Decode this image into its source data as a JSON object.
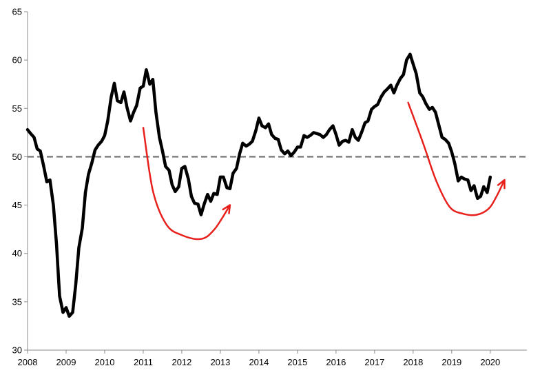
{
  "chart_data": {
    "type": "line",
    "title": "",
    "xlabel": "",
    "ylabel": "",
    "xlim": [
      2008.0,
      2020.95
    ],
    "ylim": [
      30,
      65
    ],
    "x_ticks": [
      2008,
      2009,
      2010,
      2011,
      2012,
      2013,
      2014,
      2015,
      2016,
      2017,
      2018,
      2019,
      2020
    ],
    "y_ticks": [
      30,
      35,
      40,
      45,
      50,
      55,
      60,
      65
    ],
    "grid": false,
    "legend": "none",
    "reference_line": {
      "value": 50,
      "style": "dashed",
      "color": "#808080"
    },
    "series": [
      {
        "color": "#000000",
        "points": [
          [
            2008.0,
            52.8
          ],
          [
            2008.08,
            52.4
          ],
          [
            2008.17,
            52.0
          ],
          [
            2008.25,
            50.8
          ],
          [
            2008.33,
            50.6
          ],
          [
            2008.42,
            49.0
          ],
          [
            2008.5,
            47.4
          ],
          [
            2008.58,
            47.6
          ],
          [
            2008.67,
            45.0
          ],
          [
            2008.75,
            41.0
          ],
          [
            2008.83,
            35.6
          ],
          [
            2008.92,
            33.9
          ],
          [
            2009.0,
            34.4
          ],
          [
            2009.08,
            33.5
          ],
          [
            2009.17,
            33.9
          ],
          [
            2009.25,
            36.8
          ],
          [
            2009.33,
            40.6
          ],
          [
            2009.42,
            42.6
          ],
          [
            2009.5,
            46.3
          ],
          [
            2009.58,
            48.2
          ],
          [
            2009.67,
            49.4
          ],
          [
            2009.75,
            50.7
          ],
          [
            2009.83,
            51.2
          ],
          [
            2009.92,
            51.6
          ],
          [
            2010.0,
            52.2
          ],
          [
            2010.08,
            53.7
          ],
          [
            2010.17,
            56.2
          ],
          [
            2010.25,
            57.6
          ],
          [
            2010.33,
            55.8
          ],
          [
            2010.42,
            55.6
          ],
          [
            2010.5,
            56.7
          ],
          [
            2010.58,
            55.1
          ],
          [
            2010.67,
            53.7
          ],
          [
            2010.75,
            54.6
          ],
          [
            2010.83,
            55.3
          ],
          [
            2010.92,
            57.1
          ],
          [
            2011.0,
            57.3
          ],
          [
            2011.08,
            59.0
          ],
          [
            2011.17,
            57.5
          ],
          [
            2011.25,
            58.0
          ],
          [
            2011.33,
            54.6
          ],
          [
            2011.42,
            52.0
          ],
          [
            2011.5,
            50.6
          ],
          [
            2011.58,
            49.0
          ],
          [
            2011.67,
            48.6
          ],
          [
            2011.75,
            47.1
          ],
          [
            2011.83,
            46.4
          ],
          [
            2011.92,
            46.9
          ],
          [
            2012.0,
            48.8
          ],
          [
            2012.08,
            49.0
          ],
          [
            2012.17,
            47.7
          ],
          [
            2012.25,
            45.9
          ],
          [
            2012.33,
            45.2
          ],
          [
            2012.42,
            45.1
          ],
          [
            2012.5,
            44.0
          ],
          [
            2012.58,
            45.1
          ],
          [
            2012.67,
            46.1
          ],
          [
            2012.75,
            45.4
          ],
          [
            2012.83,
            46.2
          ],
          [
            2012.92,
            46.1
          ],
          [
            2013.0,
            47.9
          ],
          [
            2013.08,
            47.9
          ],
          [
            2013.17,
            46.8
          ],
          [
            2013.25,
            46.7
          ],
          [
            2013.33,
            48.3
          ],
          [
            2013.42,
            48.8
          ],
          [
            2013.5,
            50.3
          ],
          [
            2013.58,
            51.4
          ],
          [
            2013.67,
            51.1
          ],
          [
            2013.75,
            51.3
          ],
          [
            2013.83,
            51.6
          ],
          [
            2013.92,
            52.7
          ],
          [
            2014.0,
            54.0
          ],
          [
            2014.08,
            53.2
          ],
          [
            2014.17,
            53.0
          ],
          [
            2014.25,
            53.4
          ],
          [
            2014.33,
            52.3
          ],
          [
            2014.42,
            51.9
          ],
          [
            2014.5,
            51.8
          ],
          [
            2014.58,
            50.7
          ],
          [
            2014.67,
            50.3
          ],
          [
            2014.75,
            50.6
          ],
          [
            2014.83,
            50.1
          ],
          [
            2014.92,
            50.5
          ],
          [
            2015.0,
            51.0
          ],
          [
            2015.08,
            51.0
          ],
          [
            2015.17,
            52.2
          ],
          [
            2015.25,
            52.0
          ],
          [
            2015.33,
            52.2
          ],
          [
            2015.42,
            52.5
          ],
          [
            2015.5,
            52.4
          ],
          [
            2015.58,
            52.3
          ],
          [
            2015.67,
            52.0
          ],
          [
            2015.75,
            52.3
          ],
          [
            2015.83,
            52.8
          ],
          [
            2015.92,
            53.2
          ],
          [
            2016.0,
            52.3
          ],
          [
            2016.08,
            51.2
          ],
          [
            2016.17,
            51.6
          ],
          [
            2016.25,
            51.7
          ],
          [
            2016.33,
            51.5
          ],
          [
            2016.42,
            52.8
          ],
          [
            2016.5,
            52.0
          ],
          [
            2016.58,
            51.7
          ],
          [
            2016.67,
            52.6
          ],
          [
            2016.75,
            53.5
          ],
          [
            2016.83,
            53.7
          ],
          [
            2016.92,
            54.9
          ],
          [
            2017.0,
            55.2
          ],
          [
            2017.08,
            55.4
          ],
          [
            2017.17,
            56.2
          ],
          [
            2017.25,
            56.7
          ],
          [
            2017.33,
            57.0
          ],
          [
            2017.42,
            57.4
          ],
          [
            2017.5,
            56.6
          ],
          [
            2017.58,
            57.4
          ],
          [
            2017.67,
            58.1
          ],
          [
            2017.75,
            58.5
          ],
          [
            2017.83,
            60.0
          ],
          [
            2017.92,
            60.6
          ],
          [
            2018.0,
            59.6
          ],
          [
            2018.08,
            58.6
          ],
          [
            2018.17,
            56.6
          ],
          [
            2018.25,
            56.2
          ],
          [
            2018.33,
            55.5
          ],
          [
            2018.42,
            54.9
          ],
          [
            2018.5,
            55.1
          ],
          [
            2018.58,
            54.6
          ],
          [
            2018.67,
            53.2
          ],
          [
            2018.75,
            52.0
          ],
          [
            2018.83,
            51.8
          ],
          [
            2018.92,
            51.4
          ],
          [
            2019.0,
            50.5
          ],
          [
            2019.08,
            49.3
          ],
          [
            2019.17,
            47.5
          ],
          [
            2019.25,
            47.9
          ],
          [
            2019.33,
            47.7
          ],
          [
            2019.42,
            47.6
          ],
          [
            2019.5,
            46.5
          ],
          [
            2019.58,
            47.0
          ],
          [
            2019.67,
            45.7
          ],
          [
            2019.75,
            45.9
          ],
          [
            2019.83,
            46.9
          ],
          [
            2019.92,
            46.3
          ],
          [
            2020.0,
            47.9
          ]
        ]
      }
    ],
    "annotations": [
      {
        "type": "arrow",
        "color": "#e8201c",
        "path": [
          [
            2011.0,
            53.0
          ],
          [
            2011.25,
            46.5
          ],
          [
            2011.6,
            43.0
          ],
          [
            2012.0,
            41.9
          ],
          [
            2012.5,
            41.5
          ],
          [
            2012.85,
            42.5
          ],
          [
            2013.25,
            45.0
          ]
        ]
      },
      {
        "type": "arrow",
        "color": "#e8201c",
        "path": [
          [
            2017.87,
            55.6
          ],
          [
            2018.25,
            51.5
          ],
          [
            2018.6,
            47.5
          ],
          [
            2018.95,
            44.8
          ],
          [
            2019.3,
            44.1
          ],
          [
            2019.65,
            44.0
          ],
          [
            2019.95,
            44.6
          ],
          [
            2020.15,
            45.8
          ],
          [
            2020.37,
            47.6
          ]
        ]
      }
    ]
  }
}
